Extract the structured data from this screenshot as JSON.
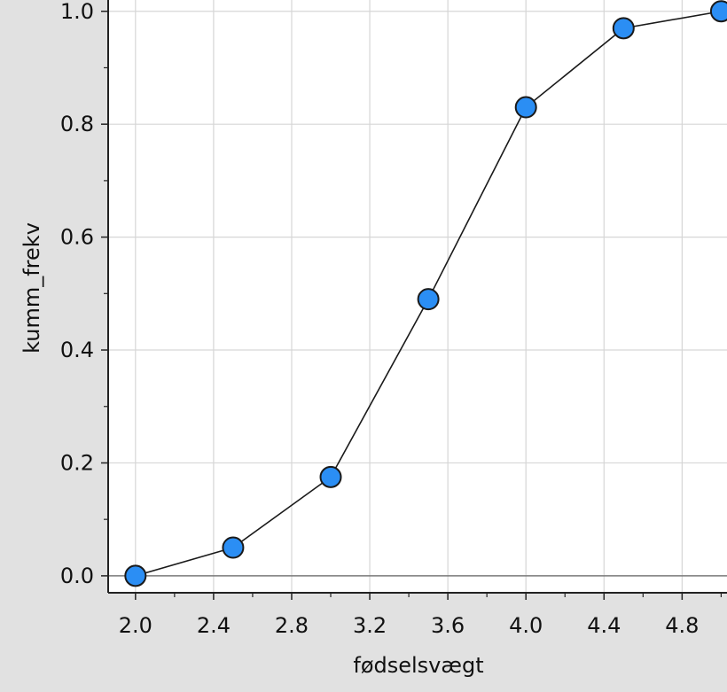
{
  "chart_data": {
    "type": "line",
    "xlabel": "fødselsvægt",
    "ylabel": "kumm_frekv",
    "xlim": [
      1.86,
      5.03
    ],
    "ylim": [
      -0.03,
      1.02
    ],
    "x_ticks": [
      "2.0",
      "2.4",
      "2.8",
      "3.2",
      "3.6",
      "4.0",
      "4.4",
      "4.8"
    ],
    "y_ticks": [
      "0.0",
      "0.2",
      "0.4",
      "0.6",
      "0.8",
      "1.0"
    ],
    "grid": true,
    "colors": {
      "marker": "#2b8ef4",
      "line": "#1a1a1a",
      "plot_bg": "#ffffff",
      "page_bg": "#e1e1e1",
      "grid": "#d6d6d6"
    },
    "series": [
      {
        "x": [
          2.0,
          2.5,
          3.0,
          3.5,
          4.0,
          4.5,
          5.0
        ],
        "y": [
          0.0,
          0.05,
          0.175,
          0.49,
          0.83,
          0.97,
          1.0
        ]
      }
    ]
  }
}
